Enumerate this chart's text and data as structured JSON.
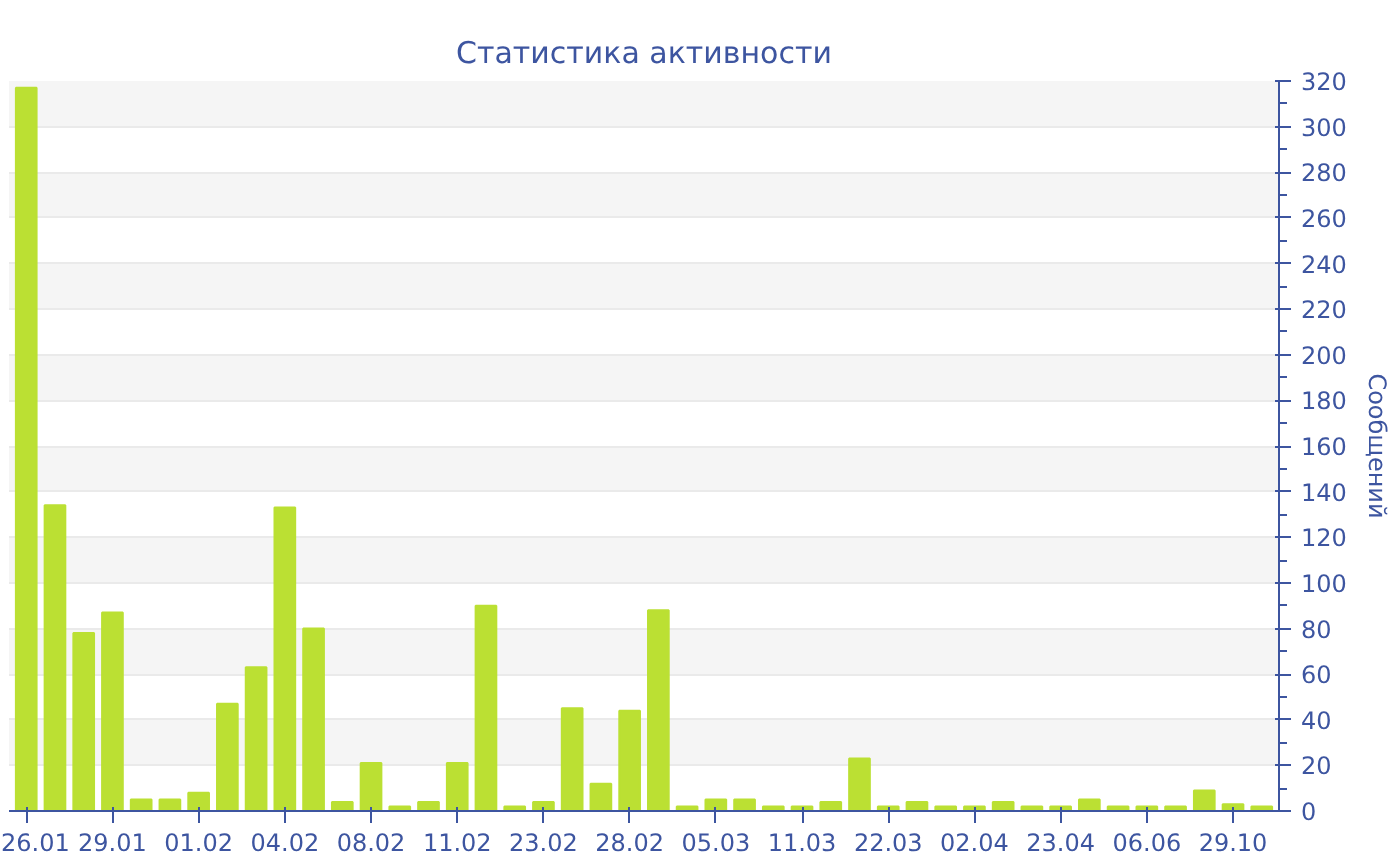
{
  "chart_data": {
    "type": "bar",
    "title": "Статистика активности",
    "ylabel": "Сообщений",
    "categories": [
      "26.01",
      null,
      null,
      "29.01",
      null,
      null,
      "01.02",
      null,
      null,
      "04.02",
      null,
      null,
      "08.02",
      null,
      null,
      "11.02",
      null,
      null,
      "23.02",
      null,
      null,
      "28.02",
      null,
      null,
      "05.03",
      null,
      null,
      "11.03",
      null,
      null,
      "22.03",
      null,
      null,
      "02.04",
      null,
      null,
      "23.04",
      null,
      null,
      "06.06",
      null,
      null,
      "29.10",
      null
    ],
    "series": [
      {
        "color": "#bbe033",
        "values": [
          317,
          134,
          78,
          87,
          5,
          5,
          8,
          47,
          63,
          133,
          80,
          4,
          21,
          2,
          4,
          21,
          90,
          2,
          4,
          45,
          12,
          44,
          88,
          2,
          5,
          5,
          2,
          2,
          4,
          23,
          2,
          4,
          2,
          2,
          4,
          2,
          2,
          5,
          2,
          2,
          2,
          9,
          3,
          2
        ]
      }
    ],
    "ylim": [
      0,
      320
    ],
    "yticks": [
      0,
      20,
      40,
      60,
      80,
      100,
      120,
      140,
      160,
      180,
      200,
      220,
      240,
      260,
      280,
      300,
      320
    ],
    "grid": "y"
  }
}
